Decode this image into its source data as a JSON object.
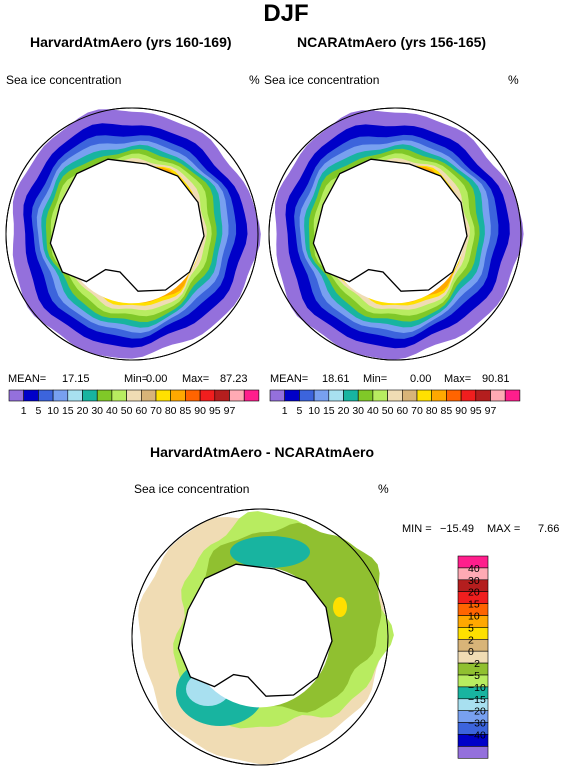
{
  "figure_title": "DJF",
  "panels": [
    {
      "title": "HarvardAtmAero (yrs 160-169)",
      "field": "Sea ice concentration",
      "units": "%",
      "stats": {
        "mean_label": "MEAN=",
        "mean": "17.15",
        "min_label": "Min=",
        "min": "0.00",
        "max_label": "Max=",
        "max": "87.23"
      }
    },
    {
      "title": "NCARAtmAero (yrs 156-165)",
      "field": "Sea ice concentration",
      "units": "%",
      "stats": {
        "mean_label": "MEAN=",
        "mean": "18.61",
        "min_label": "Min=",
        "min": "0.00",
        "max_label": "Max=",
        "max": "90.81"
      }
    }
  ],
  "diff_panel": {
    "title": "HarvardAtmAero - NCARAtmAero",
    "field": "Sea ice concentration",
    "units": "%",
    "stats": {
      "min_label": "MIN =",
      "min": "−15.49",
      "max_label": "MAX =",
      "max": "7.66"
    }
  },
  "chart_data": [
    {
      "type": "heatmap",
      "projection": "south polar stereographic",
      "title": "HarvardAtmAero (yrs 160-169)",
      "colorbar": {
        "levels": [
          "1",
          "5",
          "10",
          "15",
          "20",
          "30",
          "40",
          "50",
          "60",
          "70",
          "80",
          "85",
          "90",
          "95",
          "97"
        ],
        "colors": [
          "#9470dc",
          "#0000c8",
          "#3c64dc",
          "#78a0f0",
          "#a8e0f0",
          "#18b4a0",
          "#80c828",
          "#b8ec60",
          "#f0dcb4",
          "#d8b478",
          "#ffe000",
          "#ffa800",
          "#ff6400",
          "#f01e1e",
          "#b41e1e",
          "#ffaab4",
          "#ff1e8c"
        ]
      },
      "stats": {
        "mean": 17.15,
        "min": 0.0,
        "max": 87.23
      }
    },
    {
      "type": "heatmap",
      "projection": "south polar stereographic",
      "title": "NCARAtmAero (yrs 156-165)",
      "colorbar": {
        "levels": [
          "1",
          "5",
          "10",
          "15",
          "20",
          "30",
          "40",
          "50",
          "60",
          "70",
          "80",
          "85",
          "90",
          "95",
          "97"
        ]
      },
      "stats": {
        "mean": 18.61,
        "min": 0.0,
        "max": 90.81
      }
    },
    {
      "type": "heatmap",
      "projection": "south polar stereographic",
      "title": "HarvardAtmAero - NCARAtmAero",
      "colorbar": {
        "levels": [
          "40",
          "30",
          "20",
          "15",
          "10",
          "5",
          "2",
          "0",
          "−2",
          "−5",
          "−10",
          "−15",
          "−20",
          "−30",
          "−40"
        ],
        "colors": [
          "#ff1e8c",
          "#ffaab4",
          "#b41e1e",
          "#f01e1e",
          "#ff6400",
          "#ffa800",
          "#ffe000",
          "#d8b478",
          "#f0dcb4",
          "#90c030",
          "#b8ec60",
          "#18b4a0",
          "#a8e0f0",
          "#78a0f0",
          "#3c64dc",
          "#0000c8",
          "#9470dc"
        ]
      },
      "stats": {
        "min": -15.49,
        "max": 7.66
      }
    }
  ]
}
